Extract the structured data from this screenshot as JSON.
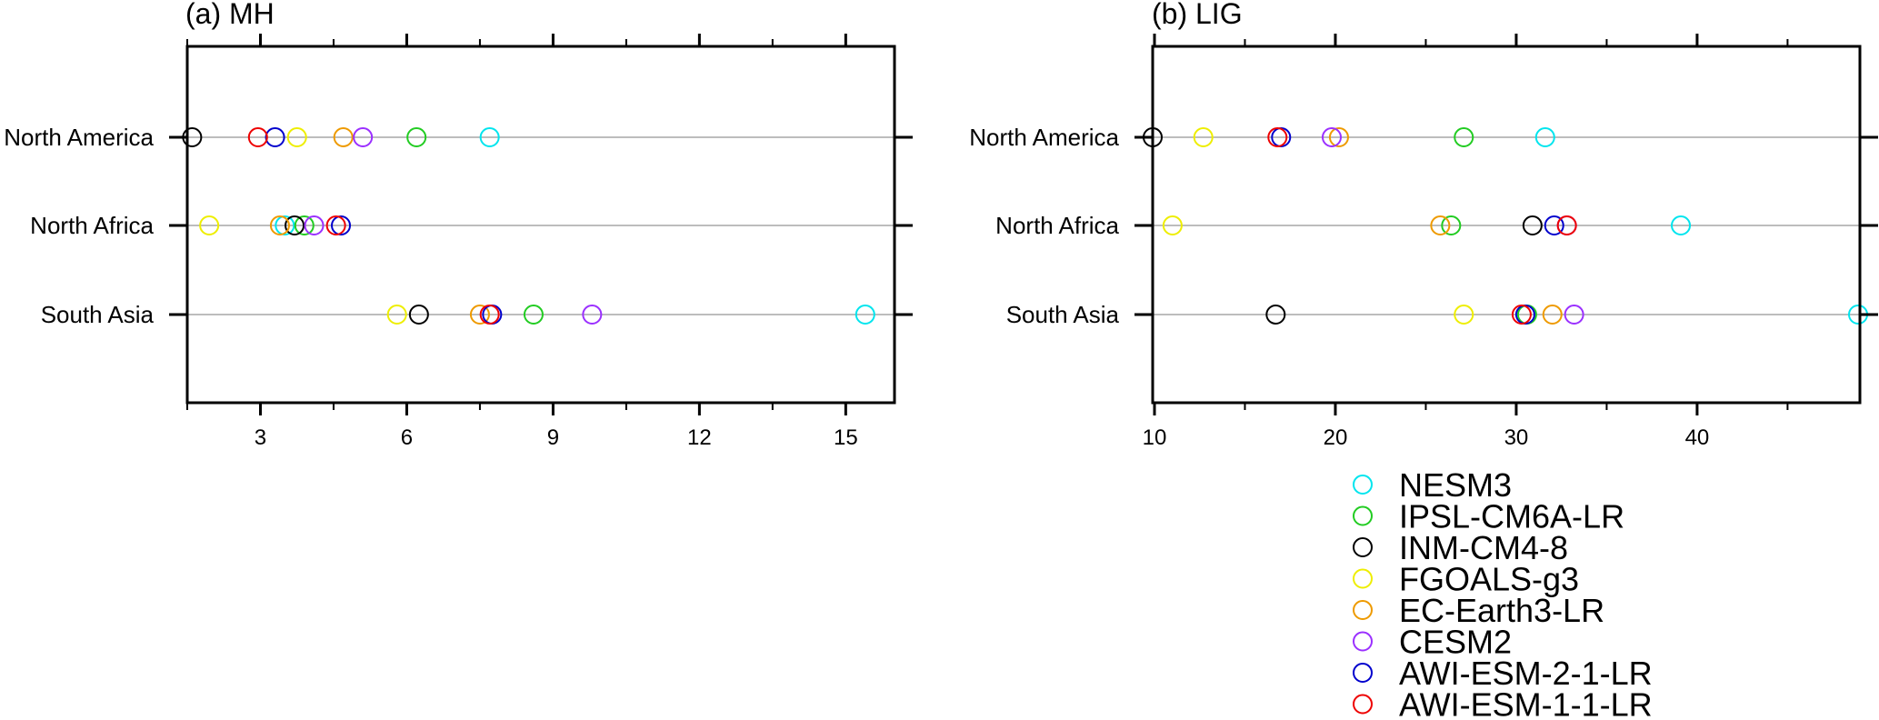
{
  "legend": {
    "models": [
      {
        "name": "NESM3",
        "color": "#00e5ee"
      },
      {
        "name": "IPSL-CM6A-LR",
        "color": "#22cc22"
      },
      {
        "name": "INM-CM4-8",
        "color": "#000000"
      },
      {
        "name": "FGOALS-g3",
        "color": "#eeee00"
      },
      {
        "name": "EC-Earth3-LR",
        "color": "#ee9a00"
      },
      {
        "name": "CESM2",
        "color": "#9b30ff"
      },
      {
        "name": "AWI-ESM-2-1-LR",
        "color": "#0000cd"
      },
      {
        "name": "AWI-ESM-1-1-LR",
        "color": "#ee0000"
      }
    ]
  },
  "chart_data": [
    {
      "type": "scatter",
      "title": "(a) MH",
      "categories": [
        "North America",
        "North Africa",
        "South Asia"
      ],
      "xticks": [
        3,
        6,
        9,
        12,
        15
      ],
      "xlim": [
        1.5,
        16.0
      ],
      "grid": "horizontal",
      "series": [
        {
          "name": "NESM3",
          "values": [
            7.7,
            3.5,
            15.4
          ]
        },
        {
          "name": "IPSL-CM6A-LR",
          "values": [
            6.2,
            3.9,
            8.6
          ]
        },
        {
          "name": "INM-CM4-8",
          "values": [
            1.6,
            3.7,
            6.25
          ]
        },
        {
          "name": "FGOALS-g3",
          "values": [
            3.75,
            1.95,
            5.8
          ]
        },
        {
          "name": "EC-Earth3-LR",
          "values": [
            4.7,
            3.4,
            7.5
          ]
        },
        {
          "name": "CESM2",
          "values": [
            5.1,
            4.1,
            9.8
          ]
        },
        {
          "name": "AWI-ESM-2-1-LR",
          "values": [
            3.3,
            4.65,
            7.75
          ]
        },
        {
          "name": "AWI-ESM-1-1-LR",
          "values": [
            2.95,
            4.55,
            7.7
          ]
        }
      ]
    },
    {
      "type": "scatter",
      "title": "(b) LIG",
      "categories": [
        "North America",
        "North Africa",
        "South Asia"
      ],
      "xticks": [
        10,
        20,
        30,
        40
      ],
      "xlim": [
        9.9,
        49.0
      ],
      "grid": "horizontal",
      "series": [
        {
          "name": "NESM3",
          "values": [
            31.6,
            39.1,
            48.9
          ]
        },
        {
          "name": "IPSL-CM6A-LR",
          "values": [
            27.1,
            26.4,
            30.6
          ]
        },
        {
          "name": "INM-CM4-8",
          "values": [
            9.9,
            30.9,
            16.7
          ]
        },
        {
          "name": "FGOALS-g3",
          "values": [
            12.7,
            11.0,
            27.1
          ]
        },
        {
          "name": "EC-Earth3-LR",
          "values": [
            20.2,
            25.8,
            32.0
          ]
        },
        {
          "name": "CESM2",
          "values": [
            19.8,
            32.8,
            33.2
          ]
        },
        {
          "name": "AWI-ESM-2-1-LR",
          "values": [
            17.0,
            32.1,
            30.5
          ]
        },
        {
          "name": "AWI-ESM-1-1-LR",
          "values": [
            16.8,
            32.8,
            30.3
          ]
        }
      ]
    }
  ]
}
